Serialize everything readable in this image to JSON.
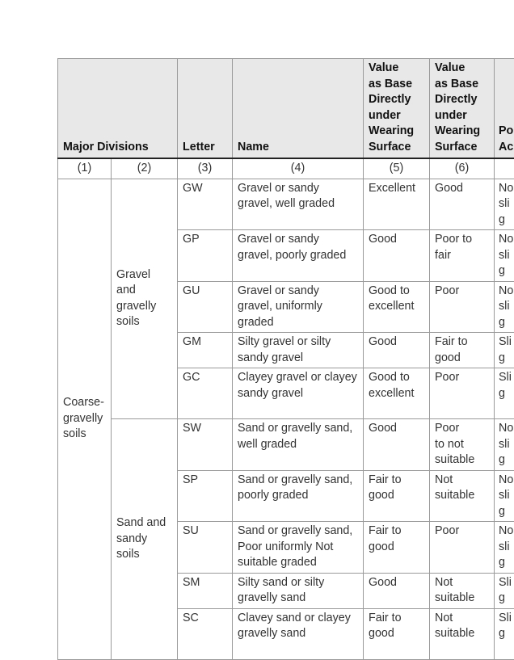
{
  "headers": {
    "major_divisions": "Major Divisions",
    "letter": "Letter",
    "name": "Name",
    "col5": "Value\nas Base\nDirectly\nunder\nWearing\nSurface",
    "col6": "Value\nas Base\nDirectly\nunder\nWearing\nSurface",
    "col7": "Po\nAc"
  },
  "numbers": [
    "(1)",
    "(2)",
    "(3)",
    "(4)",
    "(5)",
    "(6)",
    ""
  ],
  "division1": "Coarse-\ngravelly\nsoils",
  "groups": [
    {
      "label": "Gravel\nand\ngravelly\nsoils",
      "rows": [
        {
          "letter": "GW",
          "name": "Gravel or sandy\ngravel, well graded",
          "c5": "Excellent",
          "c6": "Good",
          "c7": "No\nslig"
        },
        {
          "letter": "GP",
          "name": "Gravel or sandy\ngravel, poorly graded",
          "c5": "Good",
          "c6": "Poor to\nfair",
          "c7": "No\nslig"
        },
        {
          "letter": "GU",
          "name": "Gravel or sandy\ngravel, uniformly\ngraded",
          "c5": "Good to\nexcellent",
          "c6": "Poor",
          "c7": "No\nslig"
        },
        {
          "letter": "GM",
          "name": "Silty gravel or silty\nsandy gravel",
          "c5": "Good",
          "c6": "Fair to\ngood",
          "c7": "Slig"
        },
        {
          "letter": "GC",
          "name": "Clayey gravel or clayey\nsandy gravel",
          "c5": "Good to\nexcellent",
          "c6": "Poor",
          "c7": "Slig"
        }
      ]
    },
    {
      "label": "Sand and\nsandy\nsoils",
      "rows": [
        {
          "letter": "SW",
          "name": "Sand or gravelly sand,\nwell graded",
          "c5": "Good",
          "c6": "Poor\nto not\nsuitable",
          "c7": "No\nslig"
        },
        {
          "letter": "SP",
          "name": "Sand or gravelly sand,\npoorly graded",
          "c5": "Fair to\ngood",
          "c6": "Not\nsuitable",
          "c7": "No\nslig"
        },
        {
          "letter": "SU",
          "name": "Sand or gravelly sand,\nPoor uniformly Not\nsuitable graded",
          "c5": "Fair to\ngood",
          "c6": "Poor",
          "c7": "No\nslig"
        },
        {
          "letter": "SM",
          "name": "Silty sand or silty\ngravelly sand",
          "c5": "Good",
          "c6": "Not\nsuitable",
          "c7": "Slig"
        },
        {
          "letter": "SC",
          "name": "Clavey sand or clayey\ngravelly sand",
          "c5": "Fair to\ngood",
          "c6": "Not\nsuitable",
          "c7": "Slig"
        }
      ]
    }
  ]
}
